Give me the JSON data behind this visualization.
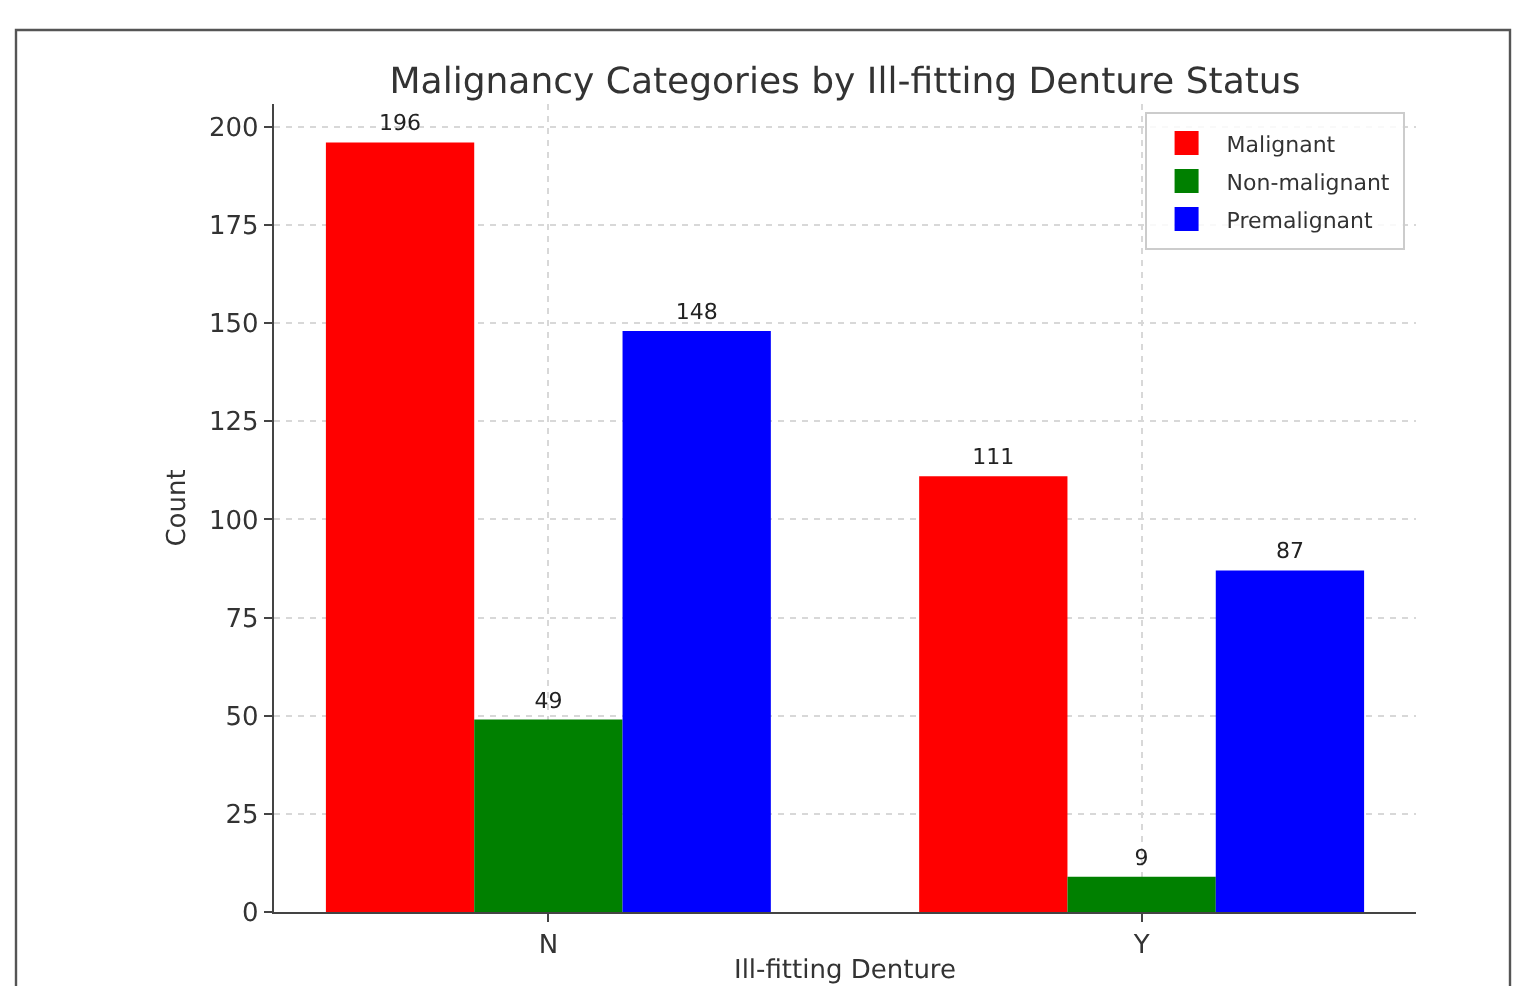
{
  "chart_data": {
    "type": "bar",
    "title": "Malignancy Categories by Ill-fitting Denture Status",
    "xlabel": "Ill-fitting Denture",
    "ylabel": "Count",
    "categories": [
      "N",
      "Y"
    ],
    "series": [
      {
        "name": "Malignant",
        "color": "#ff0000",
        "values": [
          196,
          111
        ]
      },
      {
        "name": "Non-malignant",
        "color": "#008000",
        "values": [
          49,
          9
        ]
      },
      {
        "name": "Premalignant",
        "color": "#0000ff",
        "values": [
          148,
          87
        ]
      }
    ],
    "ylim": [
      0,
      205.8
    ],
    "yticks": [
      0,
      25,
      50,
      75,
      100,
      125,
      150,
      175,
      200
    ],
    "grid": true,
    "legend": "top right",
    "data_labels": true
  }
}
